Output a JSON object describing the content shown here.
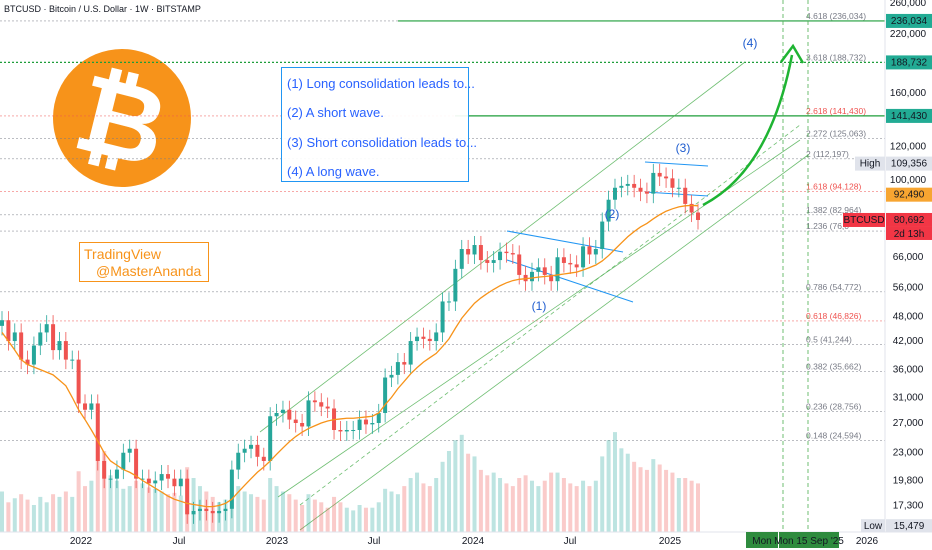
{
  "chart_title": "BTCUSD · Bitcoin / U.S. Dollar · 1W · BITSTAMP",
  "annotations": {
    "notes": [
      "(1) Long consolidation leads to...",
      "(2) A short wave.",
      "(3) Short consolidation leads to...",
      "(4) A long wave."
    ],
    "watermark": [
      "TradingView",
      "@MasterAnanda"
    ],
    "wave_labels": [
      "(1)",
      "(2)",
      "(3)",
      "(4)"
    ]
  },
  "chart_data": {
    "type": "line",
    "symbol": "BTCUSD",
    "y_scale": "log",
    "ylim": [
      15000,
      262000
    ],
    "y_ticks": [
      260000,
      220000,
      160000,
      140000,
      120000,
      100000,
      66000,
      56000,
      48000,
      42000,
      36000,
      31000,
      27000,
      23000,
      19800,
      17300,
      15000
    ],
    "x_ticks": [
      "2022",
      "Jul",
      "2023",
      "Jul",
      "2024",
      "Jul",
      "2025",
      "2026"
    ],
    "fib_levels": [
      {
        "label": "4.618 (236,034)",
        "value": 236034,
        "color": "#787b86"
      },
      {
        "label": "3.618 (188,732)",
        "value": 188732,
        "color": "#787b86"
      },
      {
        "label": "2.618 (141,430)",
        "value": 141430,
        "color": "#ef5350"
      },
      {
        "label": "2.272 (125,063)",
        "value": 125063,
        "color": "#787b86"
      },
      {
        "label": "2 (112,197)",
        "value": 112197,
        "color": "#787b86"
      },
      {
        "label": "1.618 (94,128)",
        "value": 94128,
        "color": "#ef5350"
      },
      {
        "label": "1.382 (82,964)",
        "value": 82964,
        "color": "#787b86"
      },
      {
        "label": "1.236 (76,0",
        "value": 76000,
        "color": "#787b86"
      },
      {
        "label": "0.786 (54,772)",
        "value": 54772,
        "color": "#787b86"
      },
      {
        "label": "0.618 (46,826)",
        "value": 46826,
        "color": "#ef5350"
      },
      {
        "label": "0.5 (41,244)",
        "value": 41244,
        "color": "#787b86"
      },
      {
        "label": "0.382 (35,662)",
        "value": 35662,
        "color": "#787b86"
      },
      {
        "label": "0.236 (28,756)",
        "value": 28756,
        "color": "#787b86"
      },
      {
        "label": "0.148 (24,594)",
        "value": 24594,
        "color": "#787b86"
      }
    ],
    "price_tags": [
      {
        "text": "236,034",
        "value": 236034,
        "bg": "#22ab94"
      },
      {
        "text": "188,732",
        "value": 188732,
        "bg": "#22ab94"
      },
      {
        "text": "141,430",
        "value": 141430,
        "bg": "#22ab94"
      },
      {
        "text": "109,356",
        "label": "High",
        "value": 109356,
        "bg": "#e0e3eb"
      },
      {
        "text": "92,490",
        "value": 92490,
        "bg": "#f7a531"
      },
      {
        "text": "80,692",
        "label": "BTCUSD",
        "sub": "2d 13h",
        "value": 80692,
        "bg": "#f23645"
      },
      {
        "text": "15,479",
        "label": "Low",
        "value": 15479,
        "bg": "#e0e3eb"
      }
    ],
    "time_labels": [
      "Mon",
      "Mon 15 Sep '25"
    ],
    "series": [
      {
        "name": "BTCUSD",
        "color": "#26a69a",
        "values": [
          47000,
          42000,
          44000,
          38000,
          37000,
          41000,
          44000,
          46000,
          40000,
          42000,
          38000,
          38000,
          30000,
          29000,
          30000,
          22000,
          20000,
          20000,
          21000,
          23000,
          23500,
          20000,
          20000,
          19500,
          19800,
          20500,
          20000,
          19200,
          20000,
          16500,
          16800,
          17000,
          16800,
          16600,
          16800,
          17000,
          21000,
          23000,
          23500,
          24000,
          22500,
          22000,
          28000,
          28500,
          29000,
          27500,
          27000,
          26500,
          30500,
          30200,
          29500,
          29200,
          26000,
          25800,
          26000,
          26000,
          27500,
          26800,
          27000,
          28500,
          34500,
          35000,
          37500,
          37000,
          42000,
          43000,
          42500,
          42000,
          44000,
          52000,
          52000,
          62000,
          69000,
          67000,
          70500,
          65000,
          64000,
          65000,
          68000,
          67500,
          67000,
          60000,
          58000,
          61000,
          62500,
          60000,
          58000,
          66000,
          64000,
          63500,
          62500,
          70000,
          67000,
          69000,
          80000,
          90000,
          96000,
          97000,
          98000,
          96000,
          94000,
          93000,
          104000,
          102000,
          101000,
          96000,
          96000,
          88000,
          84000,
          80692
        ]
      },
      {
        "name": "EMA",
        "color": "#f7931a",
        "values": [
          44000,
          42000,
          40000,
          38000,
          37000,
          36500,
          36000,
          35500,
          35000,
          34000,
          33000,
          31000,
          29000,
          27500,
          26000,
          24500,
          23000,
          22000,
          21500,
          21000,
          20700,
          20300,
          19800,
          19400,
          19000,
          18600,
          18200,
          17900,
          17700,
          17500,
          17400,
          17300,
          17200,
          17200,
          17300,
          17500,
          17900,
          18600,
          19300,
          20000,
          20700,
          21300,
          22000,
          22800,
          23600,
          24400,
          25100,
          25700,
          26200,
          26600,
          27000,
          27300,
          27500,
          27600,
          27700,
          27700,
          27800,
          27900,
          28000,
          28500,
          29800,
          31000,
          32500,
          33800,
          35200,
          36400,
          37500,
          38400,
          39300,
          40800,
          42500,
          45000,
          47500,
          49500,
          51500,
          53000,
          54300,
          55500,
          56600,
          57500,
          58200,
          58600,
          58800,
          59000,
          59300,
          59500,
          59700,
          60000,
          60300,
          60600,
          60900,
          61600,
          62400,
          63300,
          64700,
          66600,
          68900,
          71300,
          73700,
          75800,
          77700,
          79200,
          81200,
          83000,
          84600,
          85700,
          86600,
          87100,
          87300,
          87100
        ]
      }
    ],
    "volume": [
      30,
      22,
      25,
      28,
      24,
      20,
      26,
      22,
      28,
      26,
      30,
      26,
      45,
      34,
      38,
      70,
      60,
      42,
      38,
      32,
      34,
      38,
      36,
      33,
      32,
      30,
      28,
      29,
      27,
      48,
      40,
      34,
      30,
      26,
      22,
      24,
      38,
      34,
      30,
      28,
      26,
      24,
      40,
      34,
      30,
      28,
      24,
      20,
      28,
      24,
      22,
      18,
      26,
      22,
      18,
      16,
      20,
      18,
      18,
      22,
      32,
      30,
      28,
      34,
      40,
      44,
      36,
      34,
      40,
      52,
      60,
      68,
      72,
      58,
      56,
      46,
      42,
      44,
      40,
      36,
      34,
      40,
      42,
      38,
      34,
      38,
      44,
      44,
      40,
      36,
      34,
      38,
      34,
      38,
      56,
      68,
      74,
      62,
      58,
      52,
      48,
      46,
      54,
      50,
      46,
      44,
      40,
      40,
      38,
      36
    ],
    "annotations_present": [
      "ascending channel",
      "fibonacci extension",
      "consolidation flag",
      "projection arrow"
    ]
  }
}
